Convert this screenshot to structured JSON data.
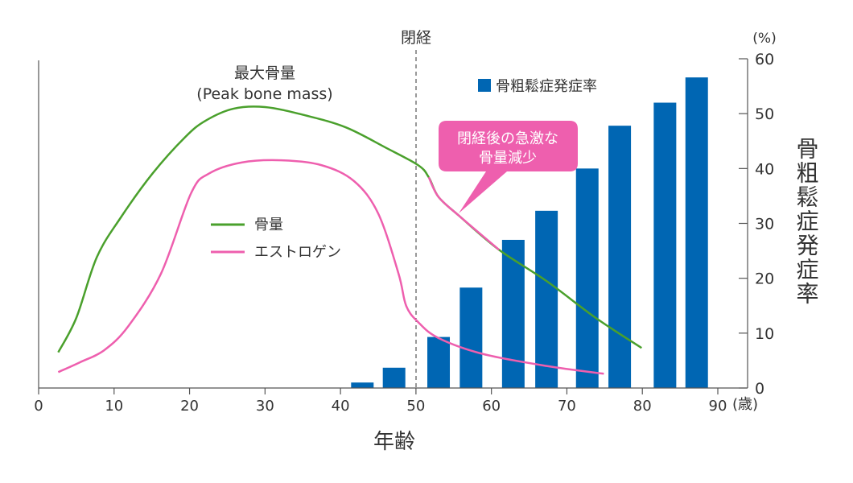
{
  "chart_data": {
    "type": "bar+line",
    "xlabel": "年齢",
    "x_unit": "(歳)",
    "xlim": [
      0,
      90
    ],
    "x_ticks": [
      0,
      10,
      20,
      30,
      40,
      50,
      60,
      70,
      80,
      90
    ],
    "y_unit": "(%)",
    "ylabel": "骨粗鬆症発症率",
    "ylim": [
      0,
      60
    ],
    "y_ticks": [
      0,
      10,
      20,
      30,
      40,
      50,
      60
    ],
    "y_axis_side": "right",
    "grid": false,
    "bars": {
      "name": "骨粗鬆症発症率",
      "color": "#0066b3",
      "x": [
        42.9,
        47.1,
        53.0,
        57.3,
        62.9,
        67.3,
        72.7,
        77.0,
        83.0,
        87.2
      ],
      "values": [
        1.0,
        3.7,
        9.3,
        18.3,
        27.0,
        32.3,
        40.0,
        47.8,
        52.0,
        56.6
      ]
    },
    "series": [
      {
        "name": "骨量",
        "color": "#4aa02c",
        "points": [
          [
            2.6,
            6.5
          ],
          [
            5.0,
            12.8
          ],
          [
            7.7,
            23.8
          ],
          [
            10.9,
            31.1
          ],
          [
            15.1,
            39.1
          ],
          [
            19.4,
            45.7
          ],
          [
            22.1,
            48.7
          ],
          [
            25.8,
            50.9
          ],
          [
            30.0,
            51.2
          ],
          [
            35.3,
            49.7
          ],
          [
            40.7,
            47.5
          ],
          [
            46.0,
            43.8
          ],
          [
            50.3,
            40.6
          ],
          [
            51.7,
            38.4
          ],
          [
            53.0,
            34.8
          ],
          [
            55.7,
            31.4
          ],
          [
            61.0,
            25.2
          ],
          [
            67.4,
            19.4
          ],
          [
            73.8,
            12.8
          ],
          [
            79.9,
            7.3
          ]
        ]
      },
      {
        "name": "エストロゲン",
        "color": "#ee5fae",
        "points": [
          [
            2.6,
            2.9
          ],
          [
            5.5,
            4.7
          ],
          [
            8.7,
            6.9
          ],
          [
            11.9,
            11.3
          ],
          [
            16.2,
            20.8
          ],
          [
            20.2,
            35.5
          ],
          [
            22.6,
            39.1
          ],
          [
            26.9,
            41.1
          ],
          [
            32.2,
            41.5
          ],
          [
            37.5,
            40.6
          ],
          [
            41.8,
            37.7
          ],
          [
            45.0,
            31.8
          ],
          [
            47.7,
            20.8
          ],
          [
            48.7,
            15.0
          ],
          [
            50.3,
            12.0
          ],
          [
            53.0,
            9.1
          ],
          [
            58.9,
            6.2
          ],
          [
            67.4,
            4.0
          ],
          [
            74.9,
            2.6
          ]
        ]
      }
    ],
    "highlight_range": [
      51.7,
      62.0
    ],
    "legend": "center-left",
    "annotations": {
      "menopause": {
        "label": "閉経",
        "x": 50
      },
      "peak_title": "最大骨量",
      "peak_sub": "(Peak bone mass)",
      "callout_line1": "閉経後の急激な",
      "callout_line2": "骨量減少"
    }
  }
}
